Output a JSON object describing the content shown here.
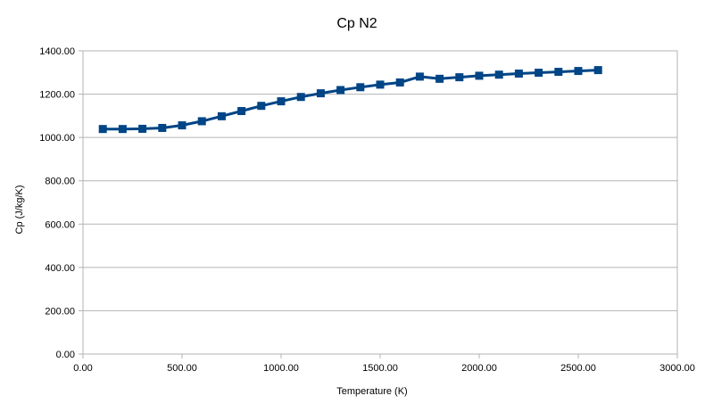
{
  "chart_data": {
    "type": "line",
    "title": "Cp N2",
    "xlabel": "Temperature (K)",
    "ylabel": "Cp (J/kg/K)",
    "xlim": [
      0,
      3000
    ],
    "ylim": [
      0,
      1400
    ],
    "x_ticks": [
      "0.00",
      "500.00",
      "1000.00",
      "1500.00",
      "2000.00",
      "2500.00",
      "3000.00"
    ],
    "y_ticks": [
      "0.00",
      "200.00",
      "400.00",
      "600.00",
      "800.00",
      "1000.00",
      "1200.00",
      "1400.00"
    ],
    "x_tick_values": [
      0,
      500,
      1000,
      1500,
      2000,
      2500,
      3000
    ],
    "y_tick_values": [
      0,
      200,
      400,
      600,
      800,
      1000,
      1200,
      1400
    ],
    "grid": "horizontal",
    "legend": "none",
    "marker": "square",
    "color": "#004586",
    "series": [
      {
        "x": [
          100,
          200,
          300,
          400,
          500,
          600,
          700,
          800,
          900,
          1000,
          1100,
          1200,
          1300,
          1400,
          1500,
          1600,
          1700,
          1800,
          1900,
          2000,
          2100,
          2200,
          2300,
          2400,
          2500,
          2600
        ],
        "values": [
          1039,
          1039,
          1040,
          1044,
          1056,
          1075,
          1098,
          1122,
          1146,
          1167,
          1187,
          1204,
          1219,
          1232,
          1244,
          1254,
          1281,
          1271,
          1278,
          1285,
          1290,
          1295,
          1299,
          1303,
          1307,
          1311
        ]
      }
    ]
  }
}
